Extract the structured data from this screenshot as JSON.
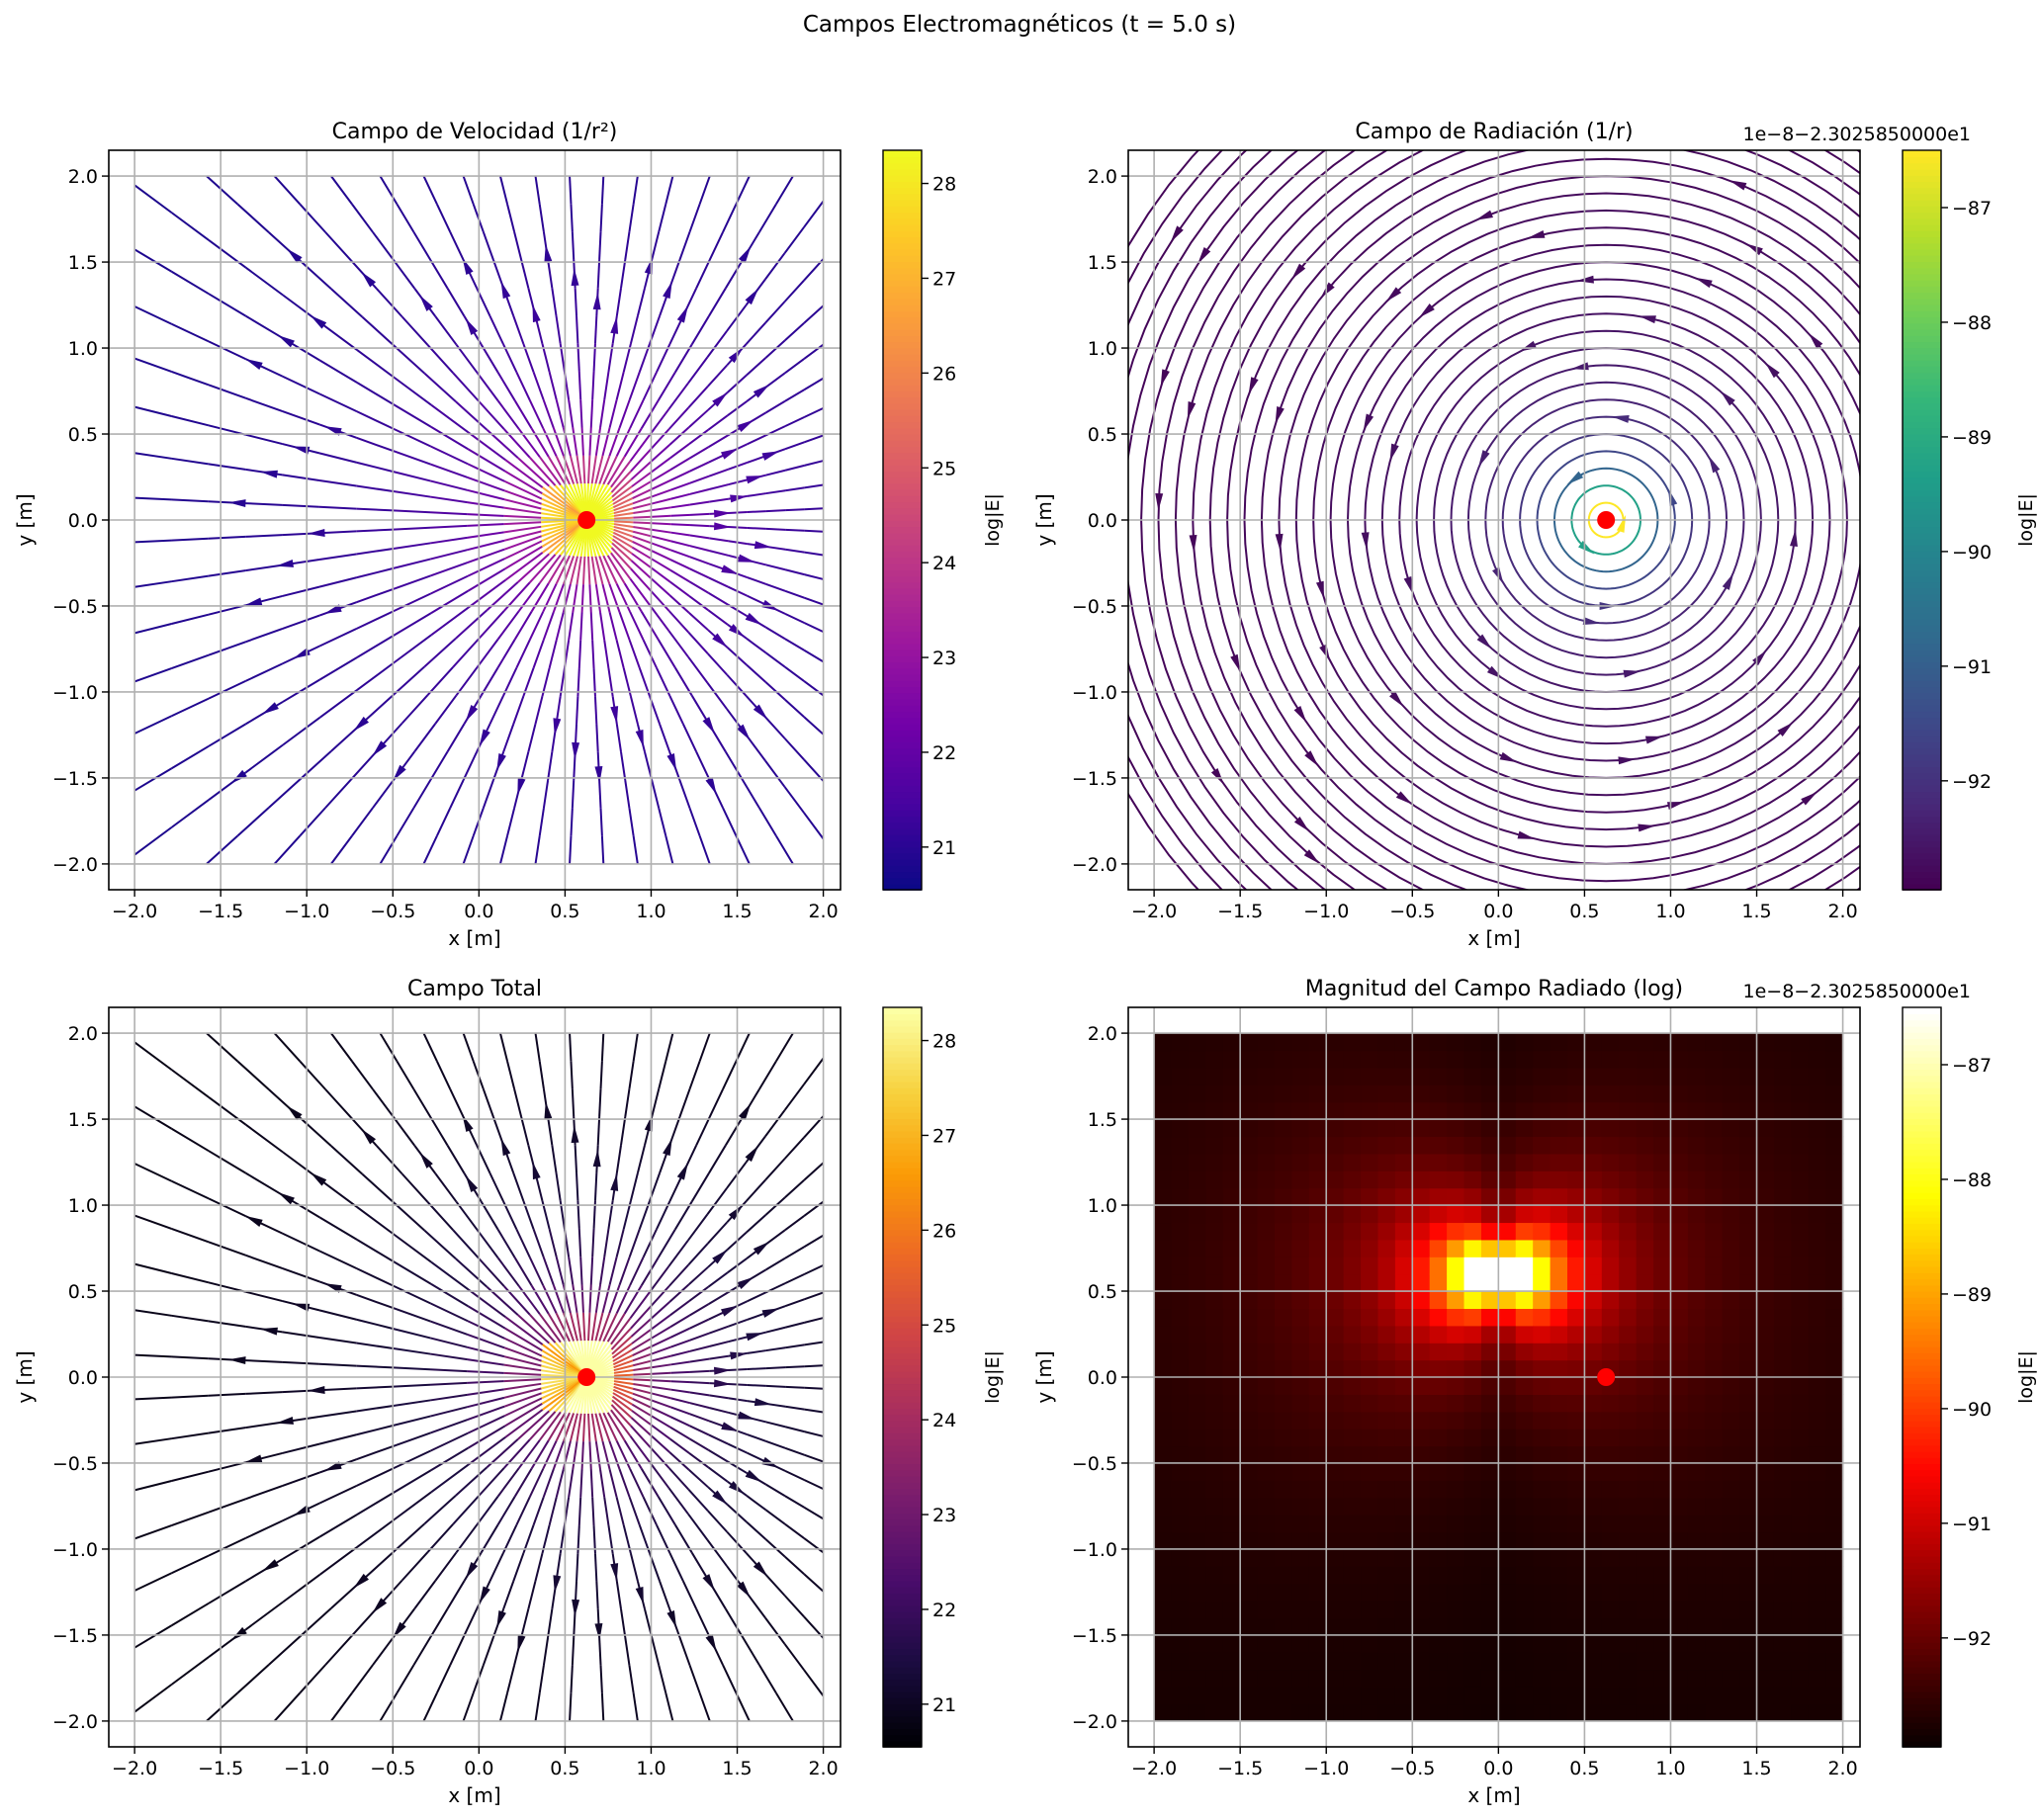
{
  "figure": {
    "suptitle": "Campos Electromagnéticos (t = 5.0 s)"
  },
  "chart_data": [
    {
      "type": "streamplot",
      "title": "Campo de Velocidad (1/r²)",
      "xlabel": "x [m]",
      "ylabel": "y [m]",
      "xlim": [
        -2.0,
        2.0
      ],
      "ylim": [
        -2.0,
        2.0
      ],
      "xticks": [
        "−2.0",
        "−1.5",
        "−1.0",
        "−0.5",
        "0.0",
        "0.5",
        "1.0",
        "1.5",
        "2.0"
      ],
      "yticks": [
        "−2.0",
        "−1.5",
        "−1.0",
        "−0.5",
        "0.0",
        "0.5",
        "1.0",
        "1.5",
        "2.0"
      ],
      "grid": true,
      "field": "radial-outward",
      "colormap": "plasma",
      "colorbar": {
        "label": "log|E|",
        "range": [
          20.55,
          28.35
        ],
        "ticks": [
          "21",
          "22",
          "23",
          "24",
          "25",
          "26",
          "27",
          "28"
        ],
        "offset": ""
      },
      "charge": {
        "x": 0.625,
        "y": 0.0,
        "color": "#ff0000"
      }
    },
    {
      "type": "streamplot",
      "title": "Campo de Radiación (1/r)",
      "xlabel": "x [m]",
      "ylabel": "y [m]",
      "xlim": [
        -2.0,
        2.0
      ],
      "ylim": [
        -2.0,
        2.0
      ],
      "xticks": [
        "−2.0",
        "−1.5",
        "−1.0",
        "−0.5",
        "0.0",
        "0.5",
        "1.0",
        "1.5",
        "2.0"
      ],
      "yticks": [
        "−2.0",
        "−1.5",
        "−1.0",
        "−0.5",
        "0.0",
        "0.5",
        "1.0",
        "1.5",
        "2.0"
      ],
      "grid": true,
      "field": "azimuthal-counterclockwise",
      "colormap": "viridis",
      "colorbar": {
        "label": "log|E|",
        "range": [
          -92.95,
          -86.5
        ],
        "ticks": [
          "−92",
          "−91",
          "−90",
          "−89",
          "−88",
          "−87"
        ],
        "offset": "1e−8−2.3025850000e1"
      },
      "charge": {
        "x": 0.625,
        "y": 0.0,
        "color": "#ff0000"
      }
    },
    {
      "type": "streamplot",
      "title": "Campo Total",
      "xlabel": "x [m]",
      "ylabel": "y [m]",
      "xlim": [
        -2.0,
        2.0
      ],
      "ylim": [
        -2.0,
        2.0
      ],
      "xticks": [
        "−2.0",
        "−1.5",
        "−1.0",
        "−0.5",
        "0.0",
        "0.5",
        "1.0",
        "1.5",
        "2.0"
      ],
      "yticks": [
        "−2.0",
        "−1.5",
        "−1.0",
        "−0.5",
        "0.0",
        "0.5",
        "1.0",
        "1.5",
        "2.0"
      ],
      "grid": true,
      "field": "radial-outward",
      "colormap": "inferno",
      "colorbar": {
        "label": "log|E|",
        "range": [
          20.55,
          28.35
        ],
        "ticks": [
          "21",
          "22",
          "23",
          "24",
          "25",
          "26",
          "27",
          "28"
        ],
        "offset": ""
      },
      "charge": {
        "x": 0.625,
        "y": 0.0,
        "color": "#ff0000"
      }
    },
    {
      "type": "heatmap",
      "title": "Magnitud del Campo Radiado (log)",
      "xlabel": "x [m]",
      "ylabel": "y [m]",
      "xlim": [
        -2.0,
        2.0
      ],
      "ylim": [
        -2.0,
        2.0
      ],
      "xticks": [
        "−2.0",
        "−1.5",
        "−1.0",
        "−0.5",
        "0.0",
        "0.5",
        "1.0",
        "1.5",
        "2.0"
      ],
      "yticks": [
        "−2.0",
        "−1.5",
        "−1.0",
        "−0.5",
        "0.0",
        "0.5",
        "1.0",
        "1.5",
        "2.0"
      ],
      "grid": true,
      "colormap": "hot",
      "grid_cells": 40,
      "peak": {
        "x": 0.0,
        "y": 0.6
      },
      "colorbar": {
        "label": "log|E|",
        "range": [
          -92.95,
          -86.5
        ],
        "ticks": [
          "−92",
          "−91",
          "−90",
          "−89",
          "−88",
          "−87"
        ],
        "offset": "1e−8−2.3025850000e1"
      },
      "charge": {
        "x": 0.625,
        "y": 0.0,
        "color": "#ff0000"
      }
    }
  ]
}
